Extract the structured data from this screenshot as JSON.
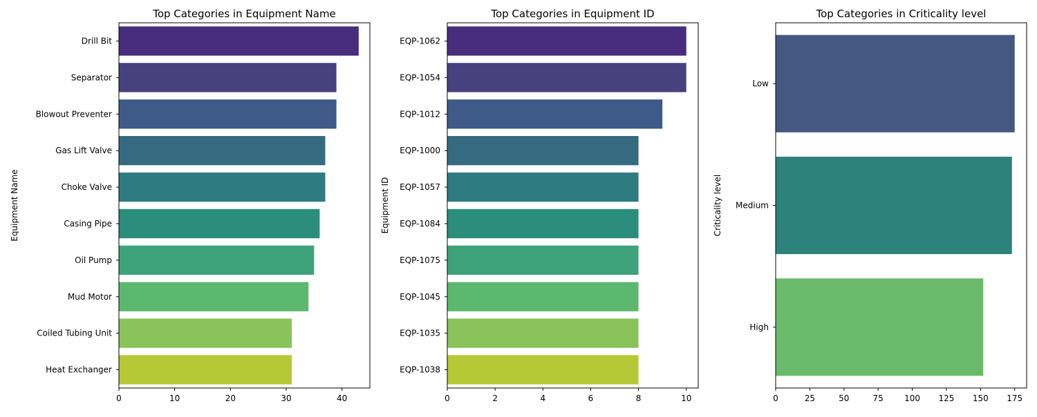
{
  "chart_data": [
    {
      "type": "bar",
      "orientation": "horizontal",
      "title": "Top Categories in Equipment Name",
      "xlabel": "",
      "ylabel": "Equipment Name",
      "categories": [
        "Drill Bit",
        "Separator",
        "Blowout Preventer",
        "Gas Lift Valve",
        "Choke Valve",
        "Casing Pipe",
        "Oil Pump",
        "Mud Motor",
        "Coiled Tubing Unit",
        "Heat Exchanger"
      ],
      "values": [
        43,
        39,
        39,
        37,
        37,
        36,
        35,
        34,
        31,
        31
      ],
      "colors": [
        "#472d7b",
        "#48417f",
        "#3e5a89",
        "#366a80",
        "#2e7b82",
        "#2b8d7b",
        "#3ea37a",
        "#5cb86f",
        "#89c35a",
        "#b5c936"
      ],
      "xlim": [
        0,
        45
      ],
      "xticks": [
        0,
        10,
        20,
        30,
        40
      ],
      "grid": false,
      "legend": "none"
    },
    {
      "type": "bar",
      "orientation": "horizontal",
      "title": "Top Categories in Equipment ID",
      "xlabel": "",
      "ylabel": "Equipment ID",
      "categories": [
        "EQP-1062",
        "EQP-1054",
        "EQP-1012",
        "EQP-1000",
        "EQP-1057",
        "EQP-1084",
        "EQP-1075",
        "EQP-1045",
        "EQP-1035",
        "EQP-1038"
      ],
      "values": [
        10,
        10,
        9,
        8,
        8,
        8,
        8,
        8,
        8,
        8
      ],
      "colors": [
        "#472d7b",
        "#48417f",
        "#3e5a89",
        "#366a80",
        "#2e7b82",
        "#2b8d7b",
        "#3ea37a",
        "#5cb86f",
        "#89c35a",
        "#b5c936"
      ],
      "xlim": [
        0,
        10.5
      ],
      "xticks": [
        0,
        2,
        4,
        6,
        8,
        10
      ],
      "grid": false,
      "legend": "none"
    },
    {
      "type": "bar",
      "orientation": "horizontal",
      "title": "Top Categories in Criticality level",
      "xlabel": "",
      "ylabel": "Criticality level",
      "categories": [
        "Low",
        "Medium",
        "High"
      ],
      "values": [
        175,
        173,
        152
      ],
      "colors": [
        "#445882",
        "#2d827b",
        "#6aba6b"
      ],
      "xlim": [
        0,
        183.75
      ],
      "xticks": [
        0,
        25,
        50,
        75,
        100,
        125,
        150,
        175
      ],
      "grid": false,
      "legend": "none"
    }
  ]
}
